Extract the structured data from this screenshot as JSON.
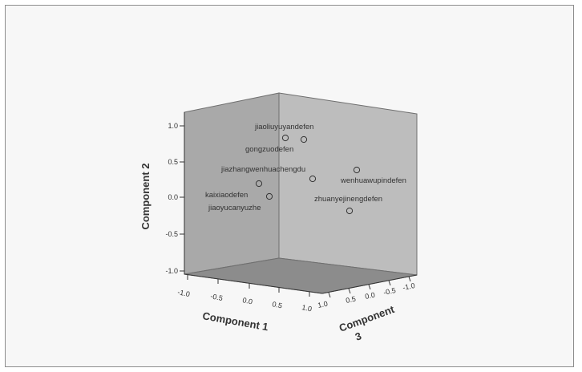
{
  "chart_data": {
    "type": "scatter",
    "projection": "3d",
    "axes": {
      "x": {
        "label": "Component 1",
        "ticks": [
          "-1.0",
          "-0.5",
          "0.0",
          "0.5",
          "1.0"
        ],
        "range": [
          -1,
          1
        ]
      },
      "y": {
        "label": "Component 2",
        "ticks": [
          "1.0",
          "0.5",
          "0.0",
          "-0.5",
          "-1.0"
        ],
        "range": [
          -1,
          1
        ]
      },
      "z": {
        "label_line1": "Component",
        "label_line2": "3",
        "ticks": [
          "1.0",
          "0.5",
          "0.0",
          "-0.5",
          "-1.0"
        ],
        "range": [
          -1,
          1
        ]
      }
    },
    "points": [
      {
        "name": "jiaoliuyuyandefen"
      },
      {
        "name": "gongzuodefen"
      },
      {
        "name": "jiazhangwenhuachengdu"
      },
      {
        "name": "wenhuawupindefen"
      },
      {
        "name": "kaixiaodefen"
      },
      {
        "name": "jiaoyucanyuzhe"
      },
      {
        "name": "zhuanyejinengdefen"
      }
    ],
    "colors": {
      "box_fill": "#a7a7a7",
      "floor_fill": "#8a8a8a",
      "edge": "#6f6f6f"
    }
  }
}
